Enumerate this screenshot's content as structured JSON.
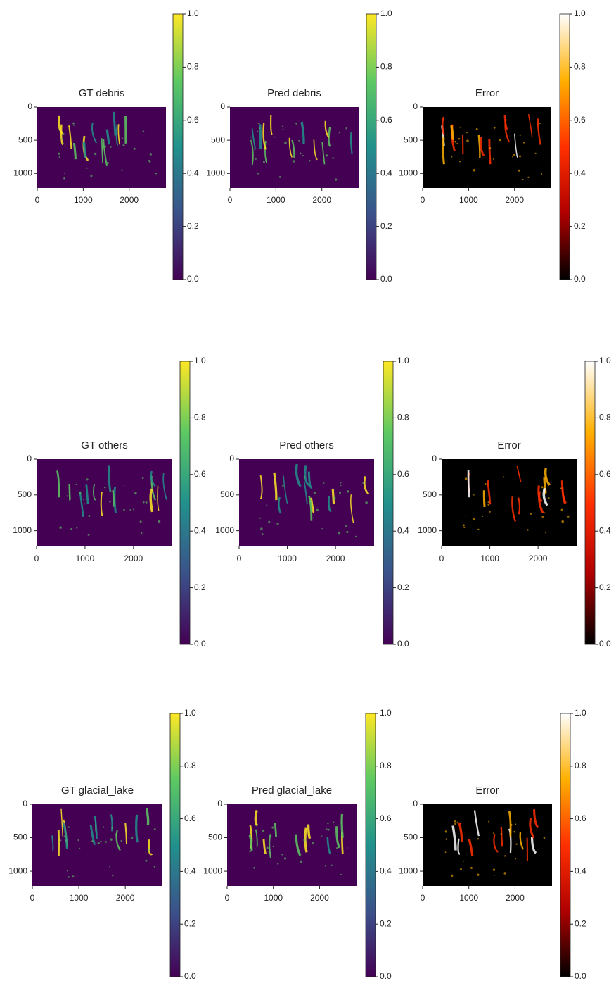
{
  "chart_data": [
    {
      "type": "image",
      "title": "GT debris",
      "xlim": [
        0,
        2800
      ],
      "ylim": [
        1220,
        0
      ],
      "xticks": [
        0,
        1000,
        2000
      ],
      "yticks": [
        0,
        500,
        1000
      ],
      "clim": [
        0,
        1
      ],
      "colorbar_ticks": [
        {
          "value": 0,
          "label": "0.0"
        },
        0.2,
        0.4,
        0.6,
        0.8,
        {
          "value": 1,
          "label": "1.0"
        }
      ],
      "cmap": [
        "#440154",
        "#3b528b",
        "#21918c",
        "#5ec962",
        "#fde725"
      ]
    },
    {
      "type": "image",
      "title": "Pred debris",
      "xlim": [
        0,
        2800
      ],
      "ylim": [
        1220,
        0
      ],
      "xticks": [
        0,
        1000,
        2000
      ],
      "yticks": [
        0,
        500,
        1000
      ],
      "clim": [
        0,
        1
      ],
      "colorbar_ticks": [
        {
          "value": 0,
          "label": "0.0"
        },
        0.2,
        0.4,
        0.6,
        0.8,
        {
          "value": 1,
          "label": "1.0"
        }
      ],
      "cmap": [
        "#440154",
        "#3b528b",
        "#21918c",
        "#5ec962",
        "#fde725"
      ]
    },
    {
      "type": "image",
      "title": "Error",
      "xlim": [
        0,
        2800
      ],
      "ylim": [
        1220,
        0
      ],
      "xticks": [
        0,
        1000,
        2000
      ],
      "yticks": [
        0,
        500,
        1000
      ],
      "clim": [
        0,
        1
      ],
      "colorbar_ticks": [
        {
          "value": 0,
          "label": "0.0"
        },
        0.2,
        0.4,
        0.6,
        0.8,
        {
          "value": 1,
          "label": "1.0"
        }
      ],
      "cmap": [
        "#000000",
        "#b00000",
        "#ff3000",
        "#ffb000",
        "#ffffff"
      ]
    },
    {
      "type": "image",
      "title": "GT others",
      "xlim": [
        0,
        2800
      ],
      "ylim": [
        1220,
        0
      ],
      "xticks": [
        0,
        1000,
        2000
      ],
      "yticks": [
        0,
        500,
        1000
      ],
      "clim": [
        0,
        1
      ],
      "colorbar_ticks": [
        {
          "value": 0,
          "label": "0.0"
        },
        0.2,
        0.4,
        0.6,
        0.8,
        {
          "value": 1,
          "label": "1.0"
        }
      ],
      "cmap": [
        "#440154",
        "#3b528b",
        "#21918c",
        "#5ec962",
        "#fde725"
      ]
    },
    {
      "type": "image",
      "title": "Pred others",
      "xlim": [
        0,
        2800
      ],
      "ylim": [
        1220,
        0
      ],
      "xticks": [
        0,
        1000,
        2000
      ],
      "yticks": [
        0,
        500,
        1000
      ],
      "clim": [
        0,
        1
      ],
      "colorbar_ticks": [
        {
          "value": 0,
          "label": "0.0"
        },
        0.2,
        0.4,
        0.6,
        0.8,
        {
          "value": 1,
          "label": "1.0"
        }
      ],
      "cmap": [
        "#440154",
        "#3b528b",
        "#21918c",
        "#5ec962",
        "#fde725"
      ]
    },
    {
      "type": "image",
      "title": "Error",
      "xlim": [
        0,
        2800
      ],
      "ylim": [
        1220,
        0
      ],
      "xticks": [
        0,
        1000,
        2000
      ],
      "yticks": [
        0,
        500,
        1000
      ],
      "clim": [
        0,
        1
      ],
      "colorbar_ticks": [
        {
          "value": 0,
          "label": "0.0"
        },
        0.2,
        0.4,
        0.6,
        0.8,
        {
          "value": 1,
          "label": "1.0"
        }
      ],
      "cmap": [
        "#000000",
        "#b00000",
        "#ff3000",
        "#ffb000",
        "#ffffff"
      ]
    },
    {
      "type": "image",
      "title": "GT glacial_lake",
      "xlim": [
        0,
        2800
      ],
      "ylim": [
        1220,
        0
      ],
      "xticks": [
        0,
        1000,
        2000
      ],
      "yticks": [
        0,
        500,
        1000
      ],
      "clim": [
        0,
        1
      ],
      "colorbar_ticks": [
        {
          "value": 0,
          "label": "0.0"
        },
        0.2,
        0.4,
        0.6,
        0.8,
        {
          "value": 1,
          "label": "1.0"
        }
      ],
      "cmap": [
        "#440154",
        "#3b528b",
        "#21918c",
        "#5ec962",
        "#fde725"
      ]
    },
    {
      "type": "image",
      "title": "Pred glacial_lake",
      "xlim": [
        0,
        2800
      ],
      "ylim": [
        1220,
        0
      ],
      "xticks": [
        0,
        1000,
        2000
      ],
      "yticks": [
        0,
        500,
        1000
      ],
      "clim": [
        0,
        1
      ],
      "colorbar_ticks": [
        {
          "value": 0,
          "label": "0.0"
        },
        0.2,
        0.4,
        0.6,
        0.8,
        {
          "value": 1,
          "label": "1.0"
        }
      ],
      "cmap": [
        "#440154",
        "#3b528b",
        "#21918c",
        "#5ec962",
        "#fde725"
      ]
    },
    {
      "type": "image",
      "title": "Error",
      "xlim": [
        0,
        2800
      ],
      "ylim": [
        1220,
        0
      ],
      "xticks": [
        0,
        1000,
        2000
      ],
      "yticks": [
        0,
        500,
        1000
      ],
      "clim": [
        0,
        1
      ],
      "colorbar_ticks": [
        {
          "value": 0,
          "label": "0.0"
        },
        0.2,
        0.4,
        0.6,
        0.8,
        {
          "value": 1,
          "label": "1.0"
        }
      ],
      "cmap": [
        "#000000",
        "#b00000",
        "#ff3000",
        "#ffb000",
        "#ffffff"
      ]
    }
  ]
}
